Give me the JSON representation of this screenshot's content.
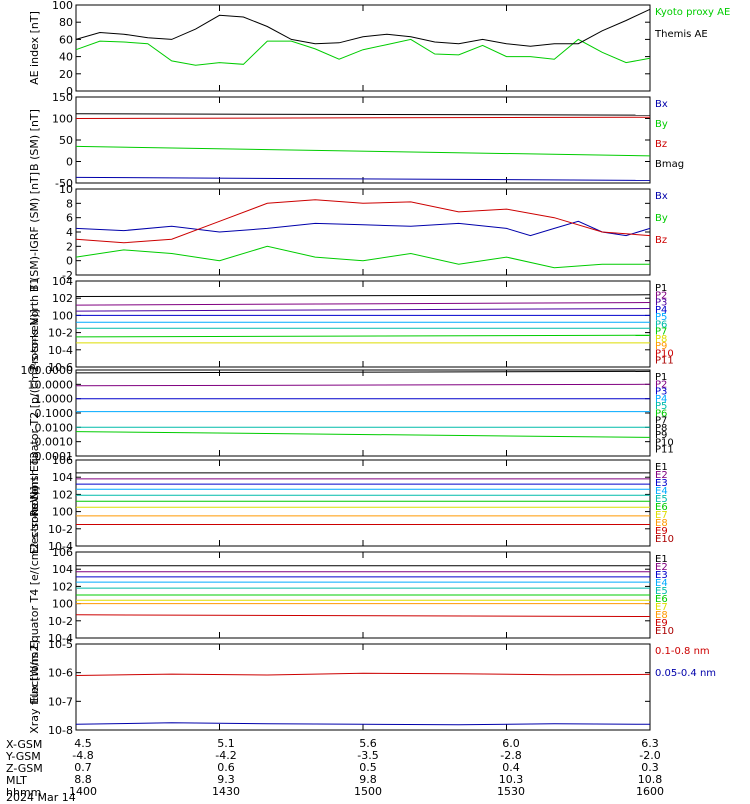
{
  "chart_data": [
    {
      "type": "line",
      "ylabel": "AE index [nT]",
      "ylim": [
        0,
        100
      ],
      "yticks": [
        "0",
        "20",
        "40",
        "60",
        "80",
        "100"
      ],
      "legend": [
        "Kyoto proxy AE",
        "Themis AE"
      ],
      "series": [
        {
          "name": "Kyoto proxy AE",
          "color": "#00cc00",
          "x": [
            0,
            5,
            10,
            15,
            20,
            25,
            30,
            35,
            40,
            45,
            50,
            55,
            60,
            65,
            70,
            75,
            80,
            85,
            90,
            95,
            100,
            105,
            110,
            115,
            120
          ],
          "values": [
            48,
            58,
            57,
            55,
            35,
            30,
            33,
            31,
            58,
            58,
            49,
            37,
            48,
            54,
            60,
            43,
            42,
            53,
            40,
            40,
            37,
            60,
            45,
            33,
            38
          ]
        },
        {
          "name": "Themis AE",
          "color": "#000000",
          "x": [
            0,
            5,
            10,
            15,
            20,
            25,
            30,
            35,
            40,
            45,
            50,
            55,
            60,
            65,
            70,
            75,
            80,
            85,
            90,
            95,
            100,
            105,
            110,
            115,
            120
          ],
          "values": [
            60,
            68,
            66,
            62,
            60,
            72,
            88,
            86,
            75,
            60,
            55,
            56,
            63,
            66,
            63,
            57,
            55,
            60,
            55,
            52,
            55,
            55,
            70,
            82,
            95
          ]
        }
      ]
    },
    {
      "type": "line",
      "ylabel": "B (SM) [nT]",
      "ylim": [
        -50,
        150
      ],
      "yticks": [
        "-50",
        "0",
        "50",
        "100",
        "150"
      ],
      "legend": [
        "Bx",
        "By",
        "Bz",
        "Bmag"
      ],
      "series": [
        {
          "name": "Bx",
          "color": "#0000aa",
          "x": [
            0,
            120
          ],
          "values": [
            -37,
            -44
          ]
        },
        {
          "name": "By",
          "color": "#00cc00",
          "x": [
            0,
            120
          ],
          "values": [
            35,
            13
          ]
        },
        {
          "name": "Bz",
          "color": "#cc0000",
          "x": [
            0,
            120
          ],
          "values": [
            100,
            103
          ]
        },
        {
          "name": "Bmag",
          "color": "#000000",
          "x": [
            0,
            120
          ],
          "values": [
            111,
            108
          ]
        }
      ]
    },
    {
      "type": "line",
      "ylabel": "B (SM)-IGRF (SM) [nT]",
      "ylim": [
        -2,
        10
      ],
      "yticks": [
        "-2",
        "0",
        "2",
        "4",
        "6",
        "8",
        "10"
      ],
      "legend": [
        "Bx",
        "By",
        "Bz"
      ],
      "series": [
        {
          "name": "Bx",
          "color": "#0000aa",
          "x": [
            0,
            10,
            20,
            30,
            40,
            50,
            60,
            70,
            80,
            90,
            95,
            100,
            105,
            110,
            115,
            120
          ],
          "values": [
            4.5,
            4.2,
            4.8,
            4.0,
            4.5,
            5.2,
            5.0,
            4.8,
            5.2,
            4.5,
            3.5,
            4.5,
            5.5,
            4.0,
            3.5,
            4.5
          ]
        },
        {
          "name": "By",
          "color": "#00cc00",
          "x": [
            0,
            10,
            20,
            30,
            40,
            50,
            60,
            70,
            80,
            90,
            100,
            110,
            120
          ],
          "values": [
            0.5,
            1.5,
            1.0,
            0,
            2.0,
            0.5,
            0,
            1.0,
            -0.5,
            0.5,
            -1.0,
            -0.5,
            -0.5
          ]
        },
        {
          "name": "Bz",
          "color": "#cc0000",
          "x": [
            0,
            10,
            20,
            30,
            40,
            50,
            60,
            70,
            80,
            90,
            100,
            110,
            120
          ],
          "values": [
            3.0,
            2.5,
            3.0,
            5.5,
            8.0,
            8.5,
            8.0,
            8.2,
            6.8,
            7.2,
            6.0,
            4.0,
            3.5
          ]
        }
      ]
    },
    {
      "type": "line",
      "ylabel": "Protons North T1",
      "log": true,
      "ylim": [
        -6,
        4
      ],
      "yticks": [
        "10-6",
        "10-4",
        "10-2",
        "100",
        "102",
        "104"
      ],
      "legend": [
        "P1",
        "P2",
        "P3",
        "P4",
        "P5",
        "P6",
        "P7",
        "P8",
        "P9",
        "P10",
        "P11"
      ],
      "series": [
        {
          "name": "P1",
          "color": "#000000",
          "values": [
            2.2,
            2.4
          ]
        },
        {
          "name": "P2",
          "color": "#800080",
          "values": [
            1.2,
            1.5
          ]
        },
        {
          "name": "P3",
          "color": "#4b00a0",
          "values": [
            0.5,
            0.8
          ]
        },
        {
          "name": "P4",
          "color": "#0000cc",
          "values": [
            0.0,
            0.0
          ]
        },
        {
          "name": "P5",
          "color": "#00aaff",
          "values": [
            -0.8,
            -0.8
          ]
        },
        {
          "name": "P6",
          "color": "#00bbaa",
          "values": [
            -1.5,
            -1.5
          ]
        },
        {
          "name": "P7",
          "color": "#00cc00",
          "values": [
            -2.5,
            -2.3
          ]
        },
        {
          "name": "P8",
          "color": "#dddd00",
          "values": [
            -3.2,
            -3.2
          ]
        },
        {
          "name": "P9",
          "color": "#ff9900",
          "values": []
        },
        {
          "name": "P10",
          "color": "#cc0000",
          "values": []
        },
        {
          "name": "P11",
          "color": "#aa0000",
          "values": []
        }
      ]
    },
    {
      "type": "line",
      "ylabel": "Protons Equator T2 [p/(cm2-s-sr-keV)]",
      "log": true,
      "ylim": [
        -4,
        2
      ],
      "yticks": [
        "0.0001",
        "0.0010",
        "0.0100",
        "0.1000",
        "1.0000",
        "10.0000",
        "100.0000"
      ],
      "legend": [
        "P1",
        "P2",
        "P3",
        "P4",
        "P5",
        "P6",
        "P7",
        "P8",
        "P9",
        "P10",
        "P11"
      ],
      "series": [
        {
          "name": "P1",
          "color": "#000000",
          "values": [
            1.8,
            1.9
          ]
        },
        {
          "name": "P2",
          "color": "#800080",
          "values": [
            0.9,
            1.0
          ]
        },
        {
          "name": "P3",
          "color": "#0000cc",
          "values": [
            0.0,
            0.0
          ]
        },
        {
          "name": "P4",
          "color": "#00aaff",
          "values": [
            -0.9,
            -0.9
          ]
        },
        {
          "name": "P5",
          "color": "#00bbaa",
          "values": [
            -2.0,
            -2.0
          ]
        },
        {
          "name": "P6",
          "color": "#00cc00",
          "values": [
            -2.3,
            -2.7
          ]
        }
      ]
    },
    {
      "type": "line",
      "ylabel": "Electrons North T3",
      "log": true,
      "ylim": [
        -4,
        6
      ],
      "yticks": [
        "10-4",
        "10-2",
        "100",
        "102",
        "104",
        "106"
      ],
      "legend": [
        "E1",
        "E2",
        "E3",
        "E4",
        "E5",
        "E6",
        "E7",
        "E8",
        "E9",
        "E10"
      ],
      "series": [
        {
          "name": "E1",
          "color": "#000000",
          "values": [
            4.5,
            4.5
          ]
        },
        {
          "name": "E2",
          "color": "#800080",
          "values": [
            3.8,
            3.8
          ]
        },
        {
          "name": "E3",
          "color": "#0000cc",
          "values": [
            3.2,
            3.2
          ]
        },
        {
          "name": "E4",
          "color": "#00aaff",
          "values": [
            2.6,
            2.6
          ]
        },
        {
          "name": "E5",
          "color": "#00bbaa",
          "values": [
            1.9,
            1.9
          ]
        },
        {
          "name": "E6",
          "color": "#00cc00",
          "values": [
            1.2,
            1.2
          ]
        },
        {
          "name": "E7",
          "color": "#dddd00",
          "values": [
            0.5,
            0.5
          ]
        },
        {
          "name": "E8",
          "color": "#ff9900",
          "values": [
            -0.5,
            -0.5
          ]
        },
        {
          "name": "E9",
          "color": "#cc0000",
          "values": [
            -1.5,
            -1.5
          ]
        },
        {
          "name": "E10",
          "color": "#aa0000",
          "values": []
        }
      ]
    },
    {
      "type": "line",
      "ylabel": "Electrons Equator T4 [e/(cm2-s-sr-keV)]",
      "log": true,
      "ylim": [
        -4,
        6
      ],
      "yticks": [
        "10-4",
        "10-2",
        "100",
        "102",
        "104",
        "106"
      ],
      "legend": [
        "E1",
        "E2",
        "E3",
        "E4",
        "E5",
        "E6",
        "E7",
        "E8",
        "E9",
        "E10"
      ],
      "series": [
        {
          "name": "E1",
          "color": "#000000",
          "values": [
            4.4,
            4.4
          ]
        },
        {
          "name": "E2",
          "color": "#800080",
          "values": [
            3.7,
            3.7
          ]
        },
        {
          "name": "E3",
          "color": "#0000cc",
          "values": [
            3.1,
            3.1
          ]
        },
        {
          "name": "E4",
          "color": "#00aaff",
          "values": [
            2.5,
            2.5
          ]
        },
        {
          "name": "E5",
          "color": "#00bbaa",
          "values": [
            1.8,
            1.8
          ]
        },
        {
          "name": "E6",
          "color": "#00cc00",
          "values": [
            1.0,
            1.0
          ]
        },
        {
          "name": "E7",
          "color": "#dddd00",
          "values": [
            0.4,
            0.4
          ]
        },
        {
          "name": "E8",
          "color": "#ff9900",
          "values": [
            0.0,
            0.0
          ]
        },
        {
          "name": "E9",
          "color": "#cc0000",
          "values": [
            -1.3,
            -1.5
          ]
        },
        {
          "name": "E10",
          "color": "#aa0000",
          "values": []
        }
      ]
    },
    {
      "type": "line",
      "ylabel": "Xray flux [W/m2]",
      "log": true,
      "ylim": [
        -8,
        -5
      ],
      "yticks": [
        "10-8",
        "10-7",
        "10-6",
        "10-5"
      ],
      "legend": [
        "0.1-0.8 nm",
        "0.05-0.4 nm"
      ],
      "series": [
        {
          "name": "0.1-0.8 nm",
          "color": "#cc0000",
          "values": [
            -6.1,
            -6.05,
            -6.08,
            -6.02,
            -6.04,
            -6.07,
            -6.06
          ]
        },
        {
          "name": "0.05-0.4 nm",
          "color": "#0000aa",
          "values": [
            -7.8,
            -7.75,
            -7.78,
            -7.8,
            -7.82,
            -7.78,
            -7.8
          ]
        }
      ]
    }
  ],
  "ephemeris": {
    "labels": [
      "X-GSM",
      "Y-GSM",
      "Z-GSM",
      "MLT",
      "hhmm",
      "2024 Mar 14"
    ],
    "columns": [
      {
        "values": [
          "4.5",
          "-4.8",
          "0.7",
          "8.8",
          "1400"
        ]
      },
      {
        "values": [
          "5.1",
          "-4.2",
          "0.6",
          "9.3",
          "1430"
        ]
      },
      {
        "values": [
          "5.6",
          "-3.5",
          "0.5",
          "9.8",
          "1500"
        ]
      },
      {
        "values": [
          "6.0",
          "-2.8",
          "0.4",
          "10.3",
          "1530"
        ]
      },
      {
        "values": [
          "6.3",
          "-2.0",
          "0.3",
          "10.8",
          "1600"
        ]
      }
    ]
  }
}
